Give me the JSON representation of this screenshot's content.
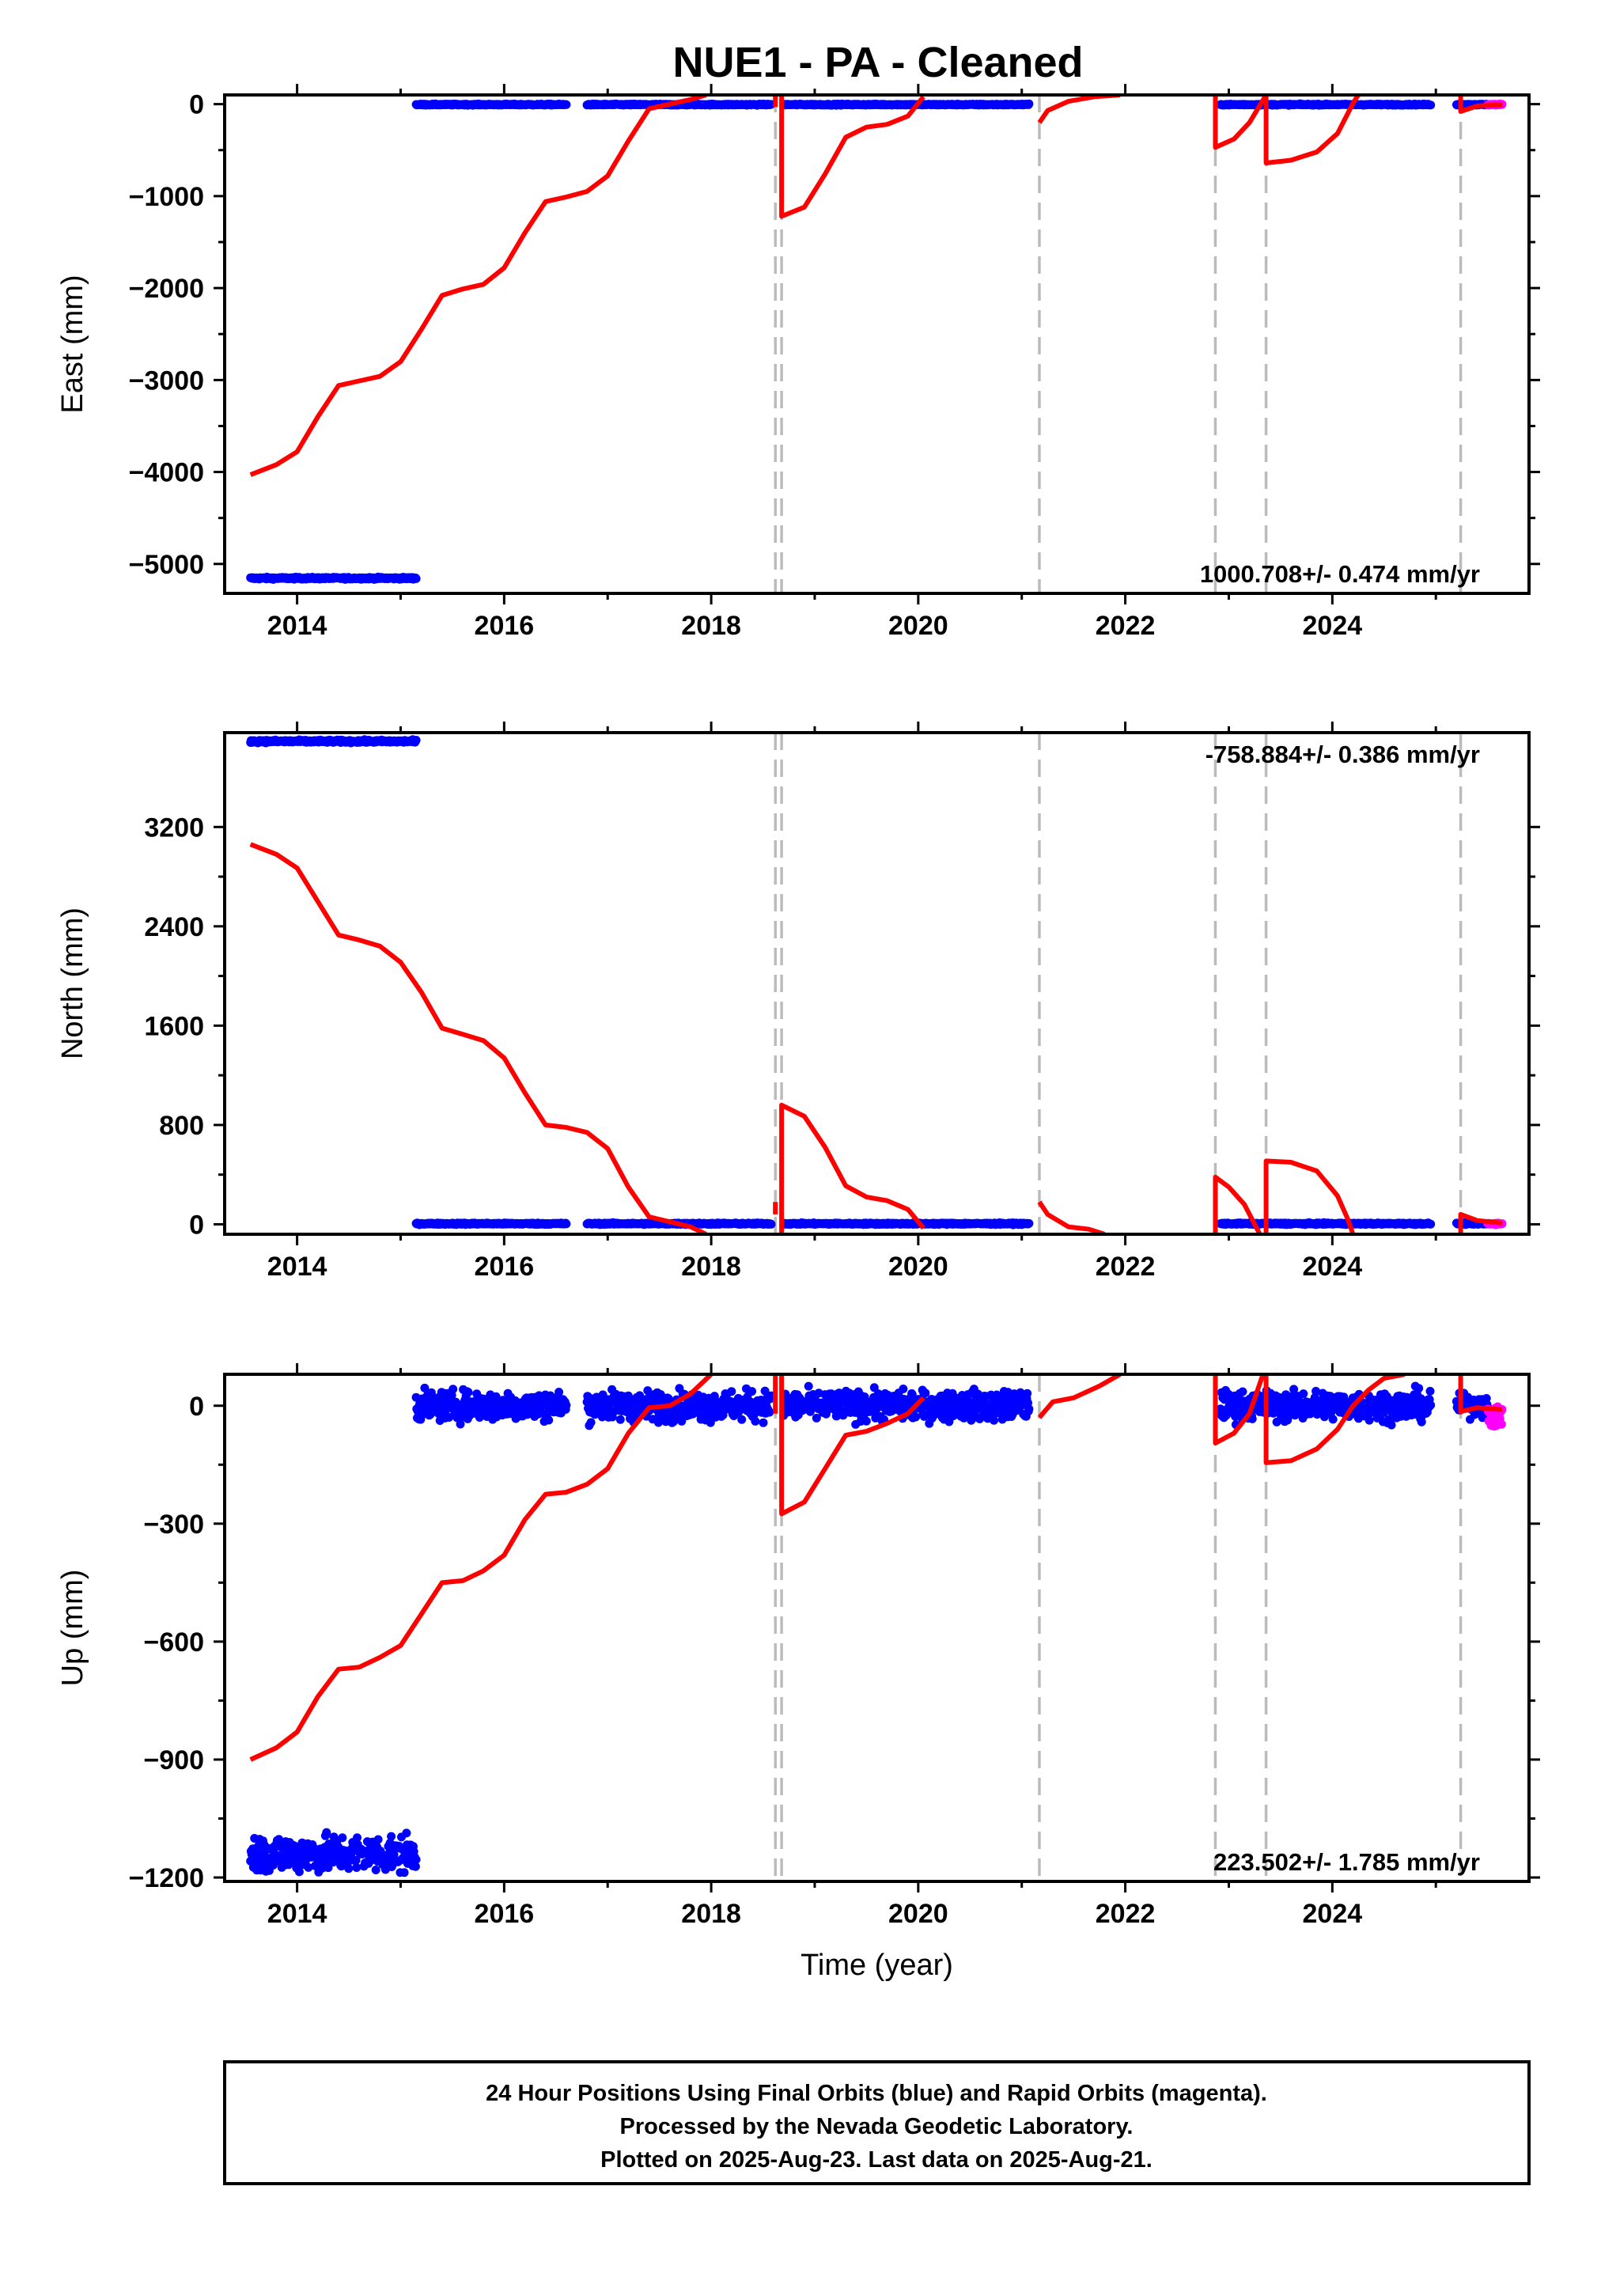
{
  "title": "NUE1  - PA - Cleaned",
  "colors": {
    "final_orbits": "#0000ff",
    "rapid_orbits": "#ff00ff",
    "model": "#ff0000",
    "offset_lines": "#bbbbbb",
    "frame": "#000000"
  },
  "chart_data": [
    {
      "type": "scatter",
      "panel": "east",
      "ylabel": "East (mm)",
      "xlabel": "",
      "xlim": [
        2013.3,
        2025.9
      ],
      "ylim": [
        -5320,
        100
      ],
      "xticks": [
        2014,
        2016,
        2018,
        2020,
        2022,
        2024
      ],
      "yticks": [
        0,
        -1000,
        -2000,
        -3000,
        -4000,
        -5000
      ],
      "grid": false,
      "rate_label": "1000.708+/- 0.474 mm/yr",
      "rate_position": "bottom-right",
      "offset_lines": [
        2018.62,
        2018.68,
        2021.17,
        2022.87,
        2023.36,
        2025.24
      ],
      "series": [
        {
          "name": "Final Orbits",
          "color": "#0000ff",
          "segments": [
            {
              "x0": 2013.55,
              "x1": 2015.15,
              "y": -5155,
              "noise": 10
            },
            {
              "x0": 2015.15,
              "x1": 2016.6,
              "y": -5,
              "noise": 6
            },
            {
              "x0": 2016.8,
              "x1": 2018.58,
              "y": -5,
              "noise": 6
            },
            {
              "x0": 2018.7,
              "x1": 2021.07,
              "y": -5,
              "noise": 6
            },
            {
              "x0": 2022.92,
              "x1": 2024.95,
              "y": -5,
              "noise": 6
            },
            {
              "x0": 2025.2,
              "x1": 2025.5,
              "y": -5,
              "noise": 6
            }
          ]
        },
        {
          "name": "Rapid Orbits",
          "color": "#ff00ff",
          "segments": [
            {
              "x0": 2025.5,
              "x1": 2025.64,
              "y": -5,
              "noise": 6
            }
          ]
        },
        {
          "name": "Model",
          "color": "#ff0000",
          "type": "line",
          "points": [
            [
              2013.55,
              -4030
            ],
            [
              2013.8,
              -3920
            ],
            [
              2014.0,
              -3780
            ],
            [
              2014.2,
              -3400
            ],
            [
              2014.4,
              -3060
            ],
            [
              2014.6,
              -3010
            ],
            [
              2014.8,
              -2960
            ],
            [
              2015.0,
              -2800
            ],
            [
              2015.2,
              -2450
            ],
            [
              2015.4,
              -2080
            ],
            [
              2015.6,
              -2010
            ],
            [
              2015.8,
              -1960
            ],
            [
              2016.0,
              -1780
            ],
            [
              2016.2,
              -1400
            ],
            [
              2016.4,
              -1060
            ],
            [
              2016.6,
              -1010
            ],
            [
              2016.8,
              -950
            ],
            [
              2017.0,
              -780
            ],
            [
              2017.2,
              -400
            ],
            [
              2017.4,
              -50
            ],
            [
              2017.6,
              0
            ],
            [
              2017.8,
              50
            ],
            [
              2017.95,
              100
            ],
            [
              null,
              null
            ],
            [
              2018.62,
              -30
            ],
            [
              2018.62,
              100
            ],
            [
              null,
              null
            ],
            [
              2018.68,
              100
            ],
            [
              2018.68,
              -1220
            ],
            [
              2018.9,
              -1120
            ],
            [
              2019.1,
              -760
            ],
            [
              2019.3,
              -360
            ],
            [
              2019.5,
              -250
            ],
            [
              2019.7,
              -220
            ],
            [
              2019.9,
              -130
            ],
            [
              2020.05,
              80
            ],
            [
              null,
              null
            ],
            [
              2021.17,
              -200
            ],
            [
              2021.25,
              -70
            ],
            [
              2021.45,
              30
            ],
            [
              2021.7,
              80
            ],
            [
              2021.95,
              100
            ],
            [
              null,
              null
            ],
            [
              2022.87,
              100
            ],
            [
              2022.87,
              -470
            ],
            [
              2023.05,
              -380
            ],
            [
              2023.2,
              -200
            ],
            [
              2023.36,
              100
            ],
            [
              null,
              null
            ],
            [
              2023.36,
              100
            ],
            [
              2023.36,
              -640
            ],
            [
              2023.6,
              -610
            ],
            [
              2023.85,
              -520
            ],
            [
              2024.05,
              -320
            ],
            [
              2024.2,
              10
            ],
            [
              2024.25,
              100
            ],
            [
              null,
              null
            ],
            [
              2025.24,
              100
            ],
            [
              2025.24,
              -80
            ],
            [
              2025.4,
              -20
            ],
            [
              2025.64,
              -5
            ]
          ]
        }
      ]
    },
    {
      "type": "scatter",
      "panel": "north",
      "ylabel": "North (mm)",
      "xlabel": "",
      "xlim": [
        2013.3,
        2025.9
      ],
      "ylim": [
        -80,
        3960
      ],
      "xticks": [
        2014,
        2016,
        2018,
        2020,
        2022,
        2024
      ],
      "yticks": [
        0,
        800,
        1600,
        2400,
        3200
      ],
      "grid": false,
      "rate_label": "-758.884+/- 0.386 mm/yr",
      "rate_position": "top-right",
      "offset_lines": [
        2018.62,
        2018.68,
        2021.17,
        2022.87,
        2023.36,
        2025.24
      ],
      "series": [
        {
          "name": "Final Orbits",
          "color": "#0000ff",
          "segments": [
            {
              "x0": 2013.55,
              "x1": 2015.15,
              "y": 3890,
              "noise": 10
            },
            {
              "x0": 2015.15,
              "x1": 2016.6,
              "y": 5,
              "noise": 6
            },
            {
              "x0": 2016.8,
              "x1": 2018.58,
              "y": 5,
              "noise": 6
            },
            {
              "x0": 2018.7,
              "x1": 2021.07,
              "y": 5,
              "noise": 6
            },
            {
              "x0": 2022.92,
              "x1": 2024.95,
              "y": 5,
              "noise": 6
            },
            {
              "x0": 2025.2,
              "x1": 2025.5,
              "y": 5,
              "noise": 6
            }
          ]
        },
        {
          "name": "Rapid Orbits",
          "color": "#ff00ff",
          "segments": [
            {
              "x0": 2025.5,
              "x1": 2025.64,
              "y": 5,
              "noise": 6
            }
          ]
        },
        {
          "name": "Model",
          "color": "#ff0000",
          "type": "line",
          "points": [
            [
              2013.55,
              3060
            ],
            [
              2013.8,
              2980
            ],
            [
              2014.0,
              2870
            ],
            [
              2014.2,
              2600
            ],
            [
              2014.4,
              2330
            ],
            [
              2014.6,
              2290
            ],
            [
              2014.8,
              2240
            ],
            [
              2015.0,
              2110
            ],
            [
              2015.2,
              1870
            ],
            [
              2015.4,
              1580
            ],
            [
              2015.6,
              1530
            ],
            [
              2015.8,
              1480
            ],
            [
              2016.0,
              1340
            ],
            [
              2016.2,
              1060
            ],
            [
              2016.4,
              800
            ],
            [
              2016.6,
              780
            ],
            [
              2016.8,
              740
            ],
            [
              2017.0,
              610
            ],
            [
              2017.2,
              300
            ],
            [
              2017.4,
              60
            ],
            [
              2017.6,
              20
            ],
            [
              2017.8,
              -20
            ],
            [
              2017.95,
              -80
            ],
            [
              null,
              null
            ],
            [
              2018.62,
              80
            ],
            [
              2018.62,
              180
            ],
            [
              null,
              null
            ],
            [
              2018.68,
              -80
            ],
            [
              2018.68,
              960
            ],
            [
              2018.9,
              870
            ],
            [
              2019.1,
              620
            ],
            [
              2019.3,
              310
            ],
            [
              2019.5,
              220
            ],
            [
              2019.7,
              190
            ],
            [
              2019.9,
              120
            ],
            [
              2020.05,
              -30
            ],
            [
              null,
              null
            ],
            [
              2021.17,
              180
            ],
            [
              2021.25,
              80
            ],
            [
              2021.45,
              -20
            ],
            [
              2021.65,
              -40
            ],
            [
              2021.8,
              -80
            ],
            [
              null,
              null
            ],
            [
              2022.87,
              -80
            ],
            [
              2022.87,
              380
            ],
            [
              2023.0,
              300
            ],
            [
              2023.15,
              160
            ],
            [
              2023.3,
              -80
            ],
            [
              null,
              null
            ],
            [
              2023.36,
              -80
            ],
            [
              2023.36,
              510
            ],
            [
              2023.6,
              500
            ],
            [
              2023.85,
              430
            ],
            [
              2024.05,
              230
            ],
            [
              2024.15,
              40
            ],
            [
              2024.2,
              -80
            ],
            [
              null,
              null
            ],
            [
              2025.24,
              -80
            ],
            [
              2025.24,
              80
            ],
            [
              2025.4,
              30
            ],
            [
              2025.64,
              10
            ]
          ]
        }
      ]
    },
    {
      "type": "scatter",
      "panel": "up",
      "ylabel": "Up (mm)",
      "xlabel": "Time (year)",
      "xlim": [
        2013.3,
        2025.9
      ],
      "ylim": [
        -1210,
        80
      ],
      "xticks": [
        2014,
        2016,
        2018,
        2020,
        2022,
        2024
      ],
      "yticks": [
        0,
        -300,
        -600,
        -900,
        -1200
      ],
      "grid": false,
      "rate_label": "223.502+/- 1.785 mm/yr",
      "rate_position": "bottom-right",
      "offset_lines": [
        2018.62,
        2018.68,
        2021.17,
        2022.87,
        2023.36,
        2025.24
      ],
      "series": [
        {
          "name": "Final Orbits",
          "color": "#0000ff",
          "segments": [
            {
              "x0": 2013.55,
              "x1": 2015.15,
              "y": -1140,
              "noise": 45
            },
            {
              "x0": 2015.15,
              "x1": 2016.6,
              "y": 0,
              "noise": 35
            },
            {
              "x0": 2016.8,
              "x1": 2018.58,
              "y": 0,
              "noise": 35
            },
            {
              "x0": 2018.7,
              "x1": 2021.07,
              "y": 0,
              "noise": 35
            },
            {
              "x0": 2022.92,
              "x1": 2024.95,
              "y": 0,
              "noise": 35
            },
            {
              "x0": 2025.2,
              "x1": 2025.5,
              "y": 0,
              "noise": 25
            }
          ]
        },
        {
          "name": "Rapid Orbits",
          "color": "#ff00ff",
          "segments": [
            {
              "x0": 2025.5,
              "x1": 2025.64,
              "y": -30,
              "noise": 25
            }
          ]
        },
        {
          "name": "Model",
          "color": "#ff0000",
          "type": "line",
          "points": [
            [
              2013.55,
              -900
            ],
            [
              2013.8,
              -870
            ],
            [
              2014.0,
              -830
            ],
            [
              2014.2,
              -740
            ],
            [
              2014.4,
              -670
            ],
            [
              2014.6,
              -665
            ],
            [
              2014.8,
              -640
            ],
            [
              2015.0,
              -610
            ],
            [
              2015.2,
              -530
            ],
            [
              2015.4,
              -450
            ],
            [
              2015.6,
              -445
            ],
            [
              2015.8,
              -420
            ],
            [
              2016.0,
              -380
            ],
            [
              2016.2,
              -290
            ],
            [
              2016.4,
              -225
            ],
            [
              2016.6,
              -220
            ],
            [
              2016.8,
              -200
            ],
            [
              2017.0,
              -160
            ],
            [
              2017.2,
              -70
            ],
            [
              2017.4,
              -5
            ],
            [
              2017.6,
              0
            ],
            [
              2017.8,
              30
            ],
            [
              2018.0,
              80
            ],
            [
              null,
              null
            ],
            [
              2018.62,
              -20
            ],
            [
              2018.62,
              80
            ],
            [
              null,
              null
            ],
            [
              2018.68,
              80
            ],
            [
              2018.68,
              -275
            ],
            [
              2018.9,
              -245
            ],
            [
              2019.1,
              -160
            ],
            [
              2019.3,
              -75
            ],
            [
              2019.5,
              -65
            ],
            [
              2019.7,
              -45
            ],
            [
              2019.9,
              -20
            ],
            [
              2020.05,
              20
            ],
            [
              null,
              null
            ],
            [
              2021.17,
              -30
            ],
            [
              2021.3,
              10
            ],
            [
              2021.5,
              20
            ],
            [
              2021.75,
              50
            ],
            [
              2021.95,
              80
            ],
            [
              null,
              null
            ],
            [
              2022.87,
              80
            ],
            [
              2022.87,
              -95
            ],
            [
              2023.05,
              -70
            ],
            [
              2023.2,
              -20
            ],
            [
              2023.33,
              80
            ],
            [
              null,
              null
            ],
            [
              2023.36,
              80
            ],
            [
              2023.36,
              -145
            ],
            [
              2023.6,
              -140
            ],
            [
              2023.85,
              -110
            ],
            [
              2024.05,
              -60
            ],
            [
              2024.2,
              0
            ],
            [
              2024.35,
              40
            ],
            [
              2024.5,
              70
            ],
            [
              2024.7,
              80
            ],
            [
              null,
              null
            ],
            [
              2025.24,
              80
            ],
            [
              2025.24,
              -15
            ],
            [
              2025.4,
              -5
            ],
            [
              2025.64,
              -10
            ]
          ]
        }
      ]
    }
  ],
  "caption": {
    "line1": "24 Hour Positions Using Final Orbits (blue) and Rapid Orbits (magenta).",
    "line2": "Processed by the Nevada Geodetic Laboratory.",
    "line3": "Plotted on 2025-Aug-23. Last data on 2025-Aug-21."
  }
}
